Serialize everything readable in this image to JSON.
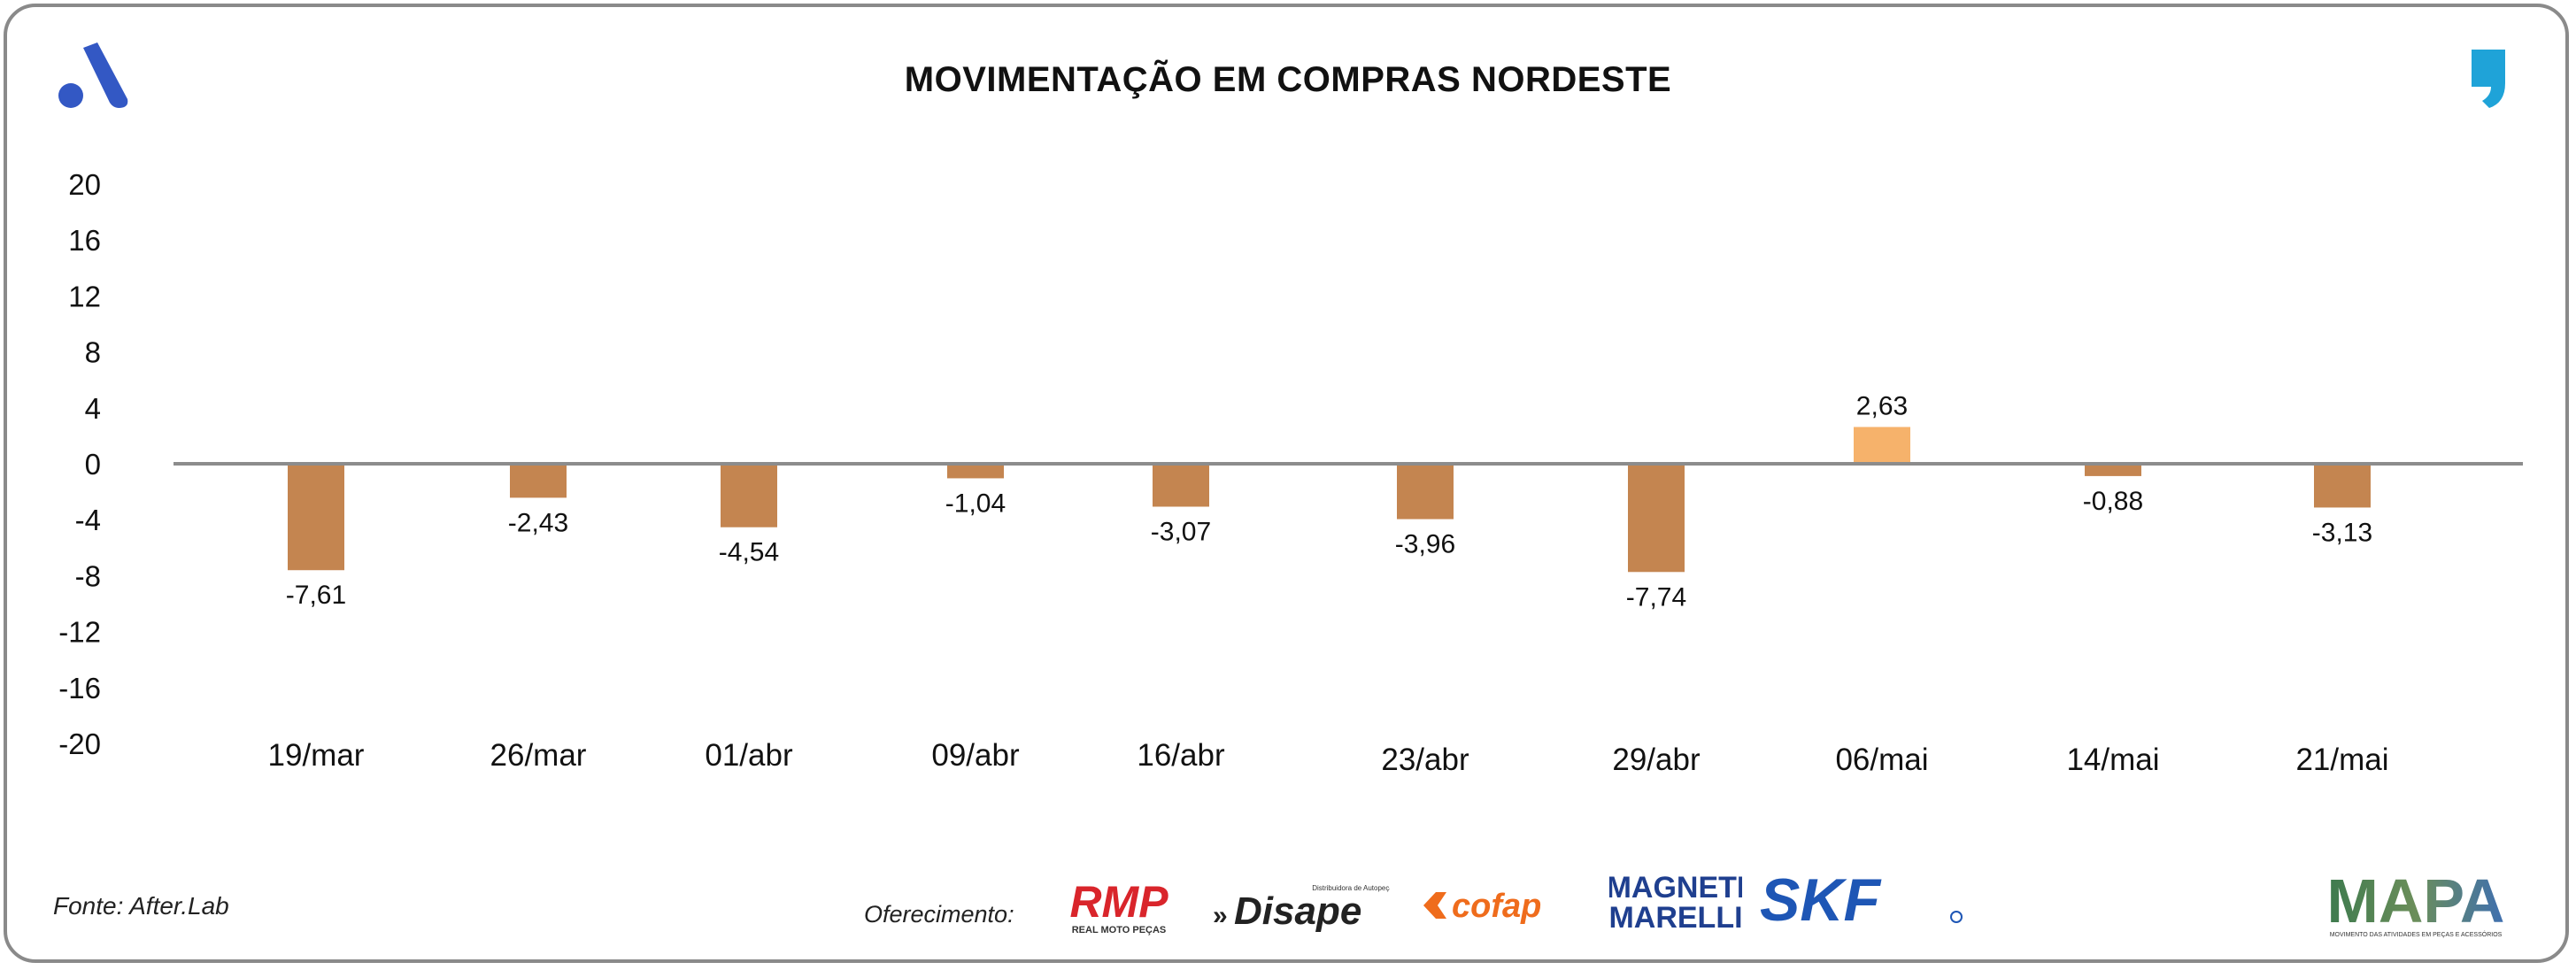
{
  "title": "MOVIMENTAÇÃO EM COMPRAS NORDESTE",
  "source": "Fonte: After.Lab",
  "offer_label": "Oferecimento:",
  "sponsors": {
    "rmp": "RMP",
    "rmp_sub": "REAL MOTO PEÇAS",
    "disape": "Disape",
    "disape_sub": "Distribuidora de Autopeças",
    "cofap": "cofap",
    "magneti_1": "MAGNETI",
    "magneti_2": "MARELLI",
    "skf": "SKF",
    "mapa": "MAPA",
    "mapa_sub": "MOVIMENTO DAS ATIVIDADES EM PEÇAS E ACESSÓRIOS"
  },
  "colors": {
    "negative": "#c48550",
    "positive": "#f6b26b",
    "baseline": "#8c8c8c",
    "brand": "#3358c4"
  },
  "chart_data": {
    "type": "bar",
    "title": "MOVIMENTAÇÃO EM COMPRAS NORDESTE",
    "categories": [
      "19/mar",
      "26/mar",
      "01/abr",
      "09/abr",
      "16/abr",
      "23/abr",
      "29/abr",
      "06/mai",
      "14/mai",
      "21/mai"
    ],
    "values": [
      -7.61,
      -2.43,
      -4.54,
      -1.04,
      -3.07,
      -3.96,
      -7.74,
      2.63,
      -0.88,
      -3.13
    ],
    "labels": [
      "-7,61",
      "-2,43",
      "-4,54",
      "-1,04",
      "-3,07",
      "-3,96",
      "-7,74",
      "2,63",
      "-0,88",
      "-3,13"
    ],
    "yticks": [
      20,
      16,
      12,
      8,
      4,
      0,
      -4,
      -8,
      -12,
      -16,
      -20
    ],
    "ylim": [
      -20,
      20
    ],
    "xlabel": "",
    "ylabel": "",
    "grid": false,
    "legend": "none"
  }
}
